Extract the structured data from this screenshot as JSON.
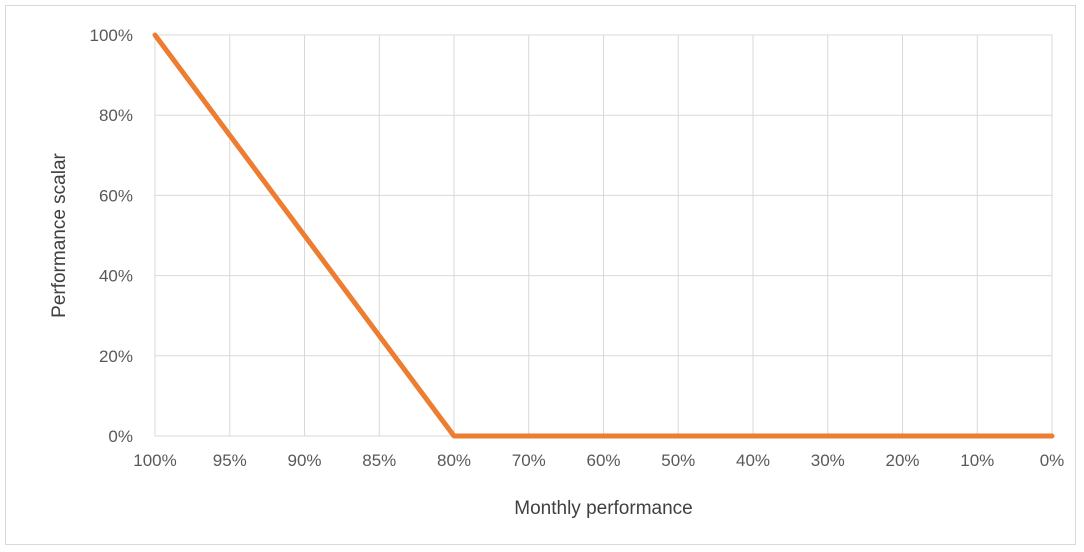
{
  "chart_data": {
    "type": "line",
    "title": "",
    "xlabel": "Monthly performance",
    "ylabel": "Performance scalar",
    "categories": [
      "100%",
      "95%",
      "90%",
      "85%",
      "80%",
      "70%",
      "60%",
      "50%",
      "40%",
      "30%",
      "20%",
      "10%",
      "0%"
    ],
    "y_ticks": [
      "0%",
      "20%",
      "40%",
      "60%",
      "80%",
      "100%"
    ],
    "ylim": [
      0,
      100
    ],
    "grid": true,
    "legend": "none",
    "series": [
      {
        "color": "#ed7d31",
        "values": [
          100,
          75,
          50,
          25,
          0,
          0,
          0,
          0,
          0,
          0,
          0,
          0,
          0
        ]
      }
    ]
  }
}
